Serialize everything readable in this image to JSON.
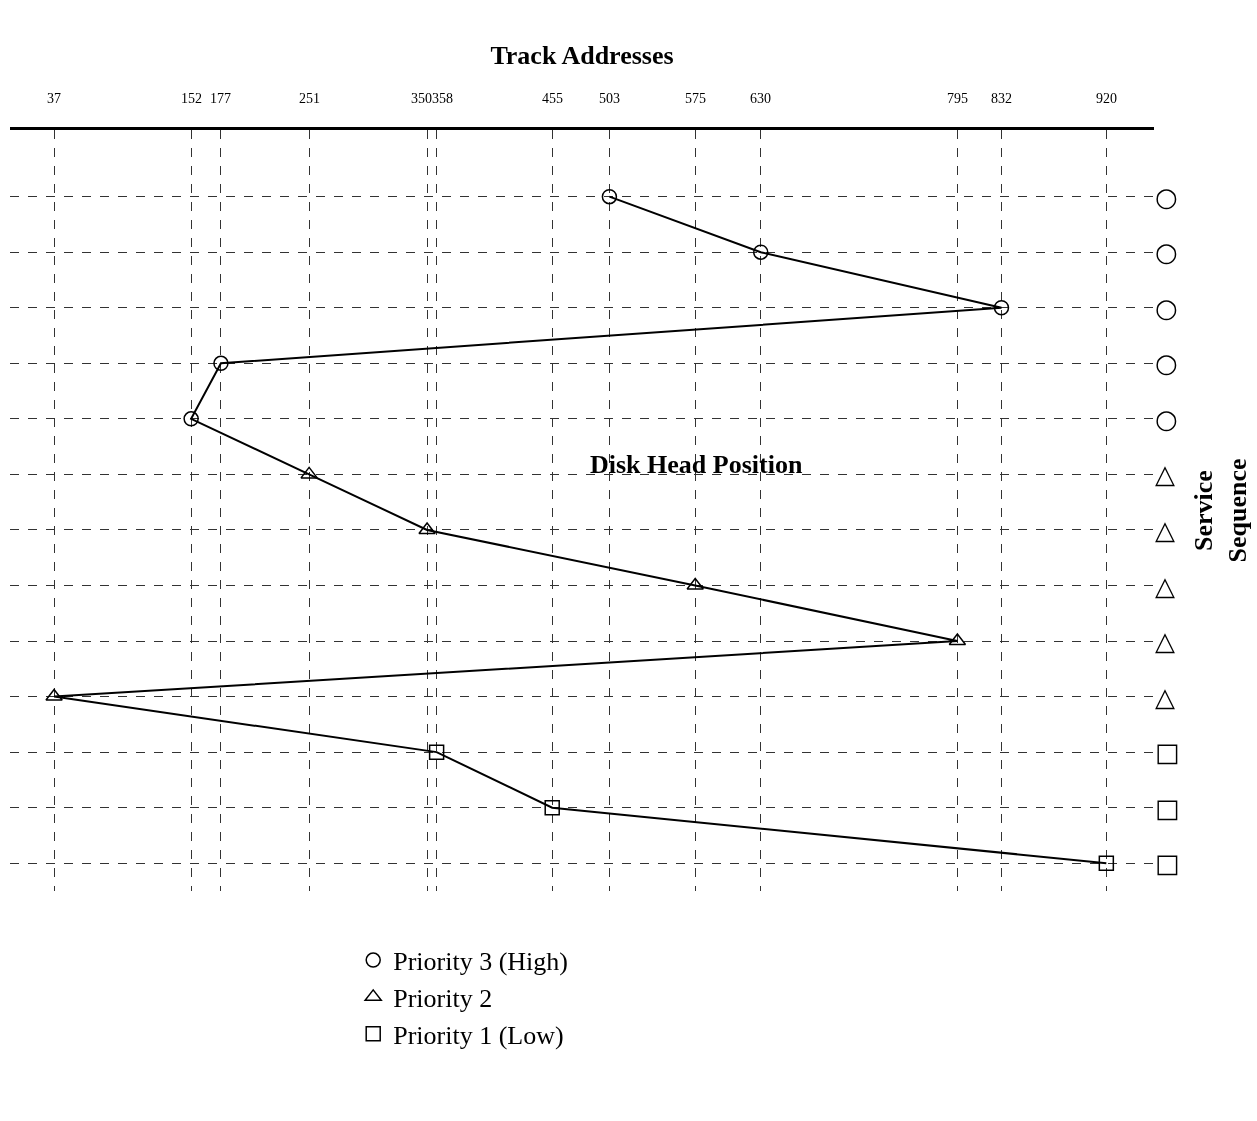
{
  "chart_data": {
    "type": "line",
    "orientation": "horizontal",
    "xlabel": "Track Addresses",
    "ylabel": "Service Sequence",
    "categories": [
      "○",
      "○",
      "○",
      "○",
      "○",
      "△",
      "△",
      "△",
      "△",
      "△",
      "□",
      "□",
      "□"
    ],
    "xlim": [
      0,
      960
    ],
    "xticks": [
      37,
      152,
      177,
      251,
      350,
      358,
      455,
      503,
      575,
      630,
      795,
      832,
      920
    ],
    "grid": true,
    "legend": "bottom",
    "annotations": [
      "Disk Head Position"
    ],
    "series": [
      {
        "color": "#000000",
        "marker": "none",
        "values": [
          503,
          630,
          832,
          177,
          152,
          251,
          350,
          575,
          795,
          37,
          358,
          455,
          920
        ]
      },
      {
        "type": "scatter",
        "name": "Priority 3 (High)",
        "color": "#000000",
        "marker": "circle",
        "values": [
          503,
          630,
          832,
          177,
          152,
          null,
          null,
          null,
          null,
          null,
          null,
          null,
          null
        ]
      },
      {
        "type": "scatter",
        "name": "Priority 2",
        "color": "#000000",
        "marker": "triangle",
        "values": [
          null,
          null,
          null,
          null,
          null,
          251,
          350,
          575,
          795,
          37,
          null,
          null,
          null
        ]
      },
      {
        "type": "scatter",
        "name": "Priority 1 (Low)",
        "color": "#000000",
        "marker": "square",
        "values": [
          null,
          null,
          null,
          null,
          null,
          null,
          null,
          null,
          null,
          null,
          358,
          455,
          920
        ]
      }
    ]
  }
}
